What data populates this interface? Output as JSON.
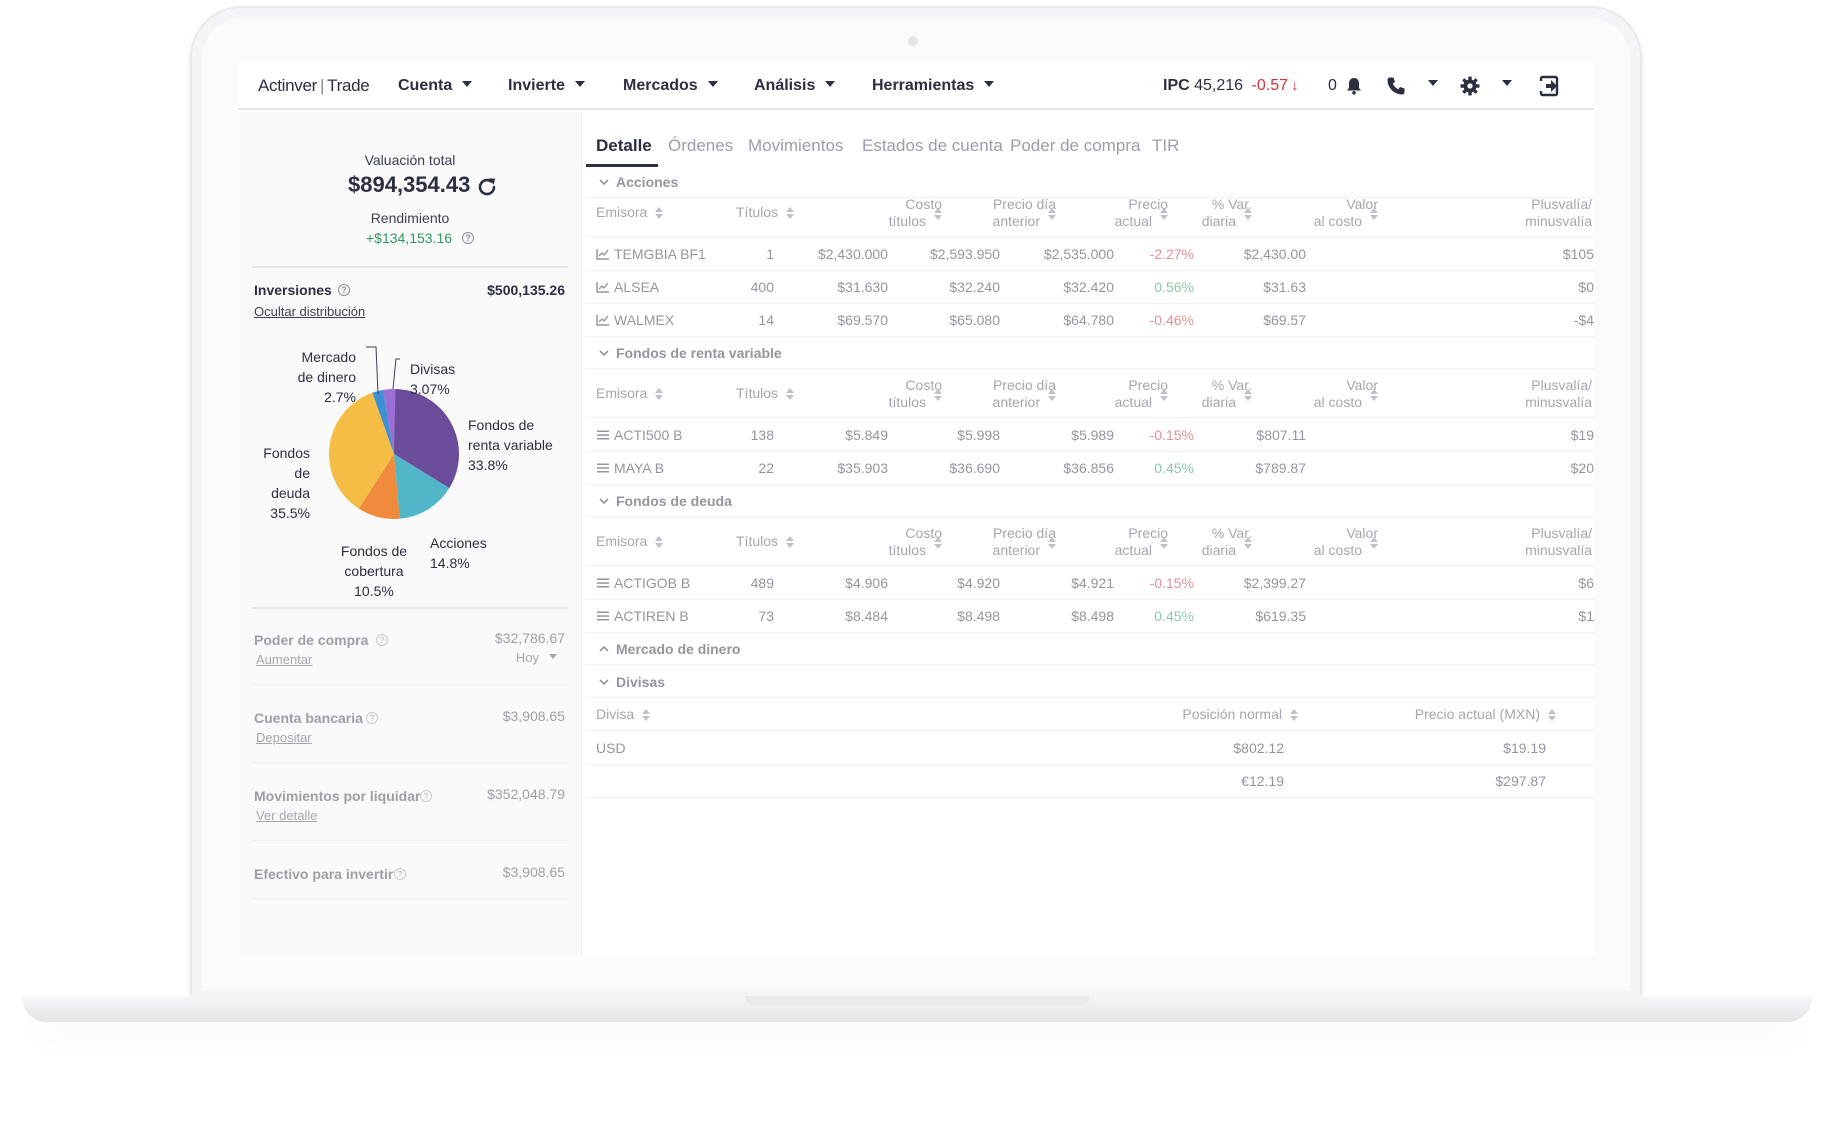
{
  "nav": {
    "brand_name": "Actinver",
    "brand_product": "Trade",
    "items": [
      "Cuenta",
      "Invierte",
      "Mercados",
      "Análisis",
      "Herramientas"
    ],
    "ipc_label": "IPC",
    "ipc_value": "45,216",
    "ipc_change": "-0.57",
    "notifications": "0"
  },
  "summary": {
    "valuation_label": "Valuación total",
    "valuation": "$894,354.43",
    "return_label": "Rendimiento",
    "return_value": "+$134,153.16",
    "investments_label": "Inversiones",
    "investments_value": "$500,135.26",
    "hide_distribution": "Ocultar distribución"
  },
  "pie": {
    "slices": [
      {
        "name": "Fondos de renta variable",
        "pct": 33.8,
        "color": "#6b4c9a"
      },
      {
        "name": "Acciones",
        "pct": 14.8,
        "color": "#52b6c9"
      },
      {
        "name": "Fondos de cobertura",
        "pct": 10.5,
        "color": "#f08a3c"
      },
      {
        "name": "Fondos de deuda",
        "pct": 35.5,
        "color": "#f4bd45"
      },
      {
        "name": "Mercado de dinero",
        "pct": 2.7,
        "color": "#3f8fd6"
      },
      {
        "name": "Divisas",
        "pct": 3.07,
        "color": "#9b6fd6"
      }
    ],
    "labels": {
      "mercado_l1": "Mercado",
      "mercado_l2": "de dinero",
      "mercado_pct": "2.7%",
      "divisas_l1": "Divisas",
      "divisas_pct": "3.07%",
      "rv_l1": "Fondos de",
      "rv_l2": "renta variable",
      "rv_pct": "33.8%",
      "deuda_l1": "Fondos de",
      "deuda_l2": "deuda",
      "deuda_pct": "35.5%",
      "acciones_l1": "Acciones",
      "acciones_pct": "14.8%",
      "cob_l1": "Fondos de",
      "cob_l2": "cobertura",
      "cob_pct": "10.5%"
    }
  },
  "left_rows": [
    {
      "label": "Poder de compra",
      "amount": "$32,786.67",
      "link": "Aumentar",
      "sub": "Hoy"
    },
    {
      "label": "Cuenta bancaria",
      "amount": "$3,908.65",
      "link": "Depositar"
    },
    {
      "label": "Movimientos por liquidar",
      "amount": "$352,048.79",
      "link": "Ver detalle"
    },
    {
      "label": "Efectivo para invertir",
      "amount": "$3,908.65"
    }
  ],
  "tabs": [
    "Detalle",
    "Órdenes",
    "Movimientos",
    "Estados de cuenta",
    "Poder de compra",
    "TIR"
  ],
  "columns": {
    "emisora": "Emisora",
    "titulos": "Títulos",
    "costo_1": "Costo",
    "costo_2": "títulos",
    "precio_ant_1": "Precio día",
    "precio_ant_2": "anterior",
    "precio_act_1": "Precio",
    "precio_act_2": "actual",
    "var_1": "% Var.",
    "var_2": "diaria",
    "valor_1": "Valor",
    "valor_2": "al costo",
    "plus_1": "Plusvalía/",
    "plus_2": "minusvalía"
  },
  "sections": {
    "acciones": "Acciones",
    "renta_variable": "Fondos de renta variable",
    "deuda": "Fondos de deuda",
    "mercado": "Mercado de dinero",
    "divisas": "Divisas"
  },
  "acciones": [
    {
      "emisora": "TEMGBIA BF1",
      "titulos": "1",
      "costo": "$2,430.000",
      "ant": "$2,593.950",
      "act": "$2,535.000",
      "var": "-2.27%",
      "valor": "$2,430.00",
      "plus": "$105"
    },
    {
      "emisora": "ALSEA",
      "titulos": "400",
      "costo": "$31.630",
      "ant": "$32.240",
      "act": "$32.420",
      "var": "0.56%",
      "valor": "$31.63",
      "plus": "$0"
    },
    {
      "emisora": "WALMEX",
      "titulos": "14",
      "costo": "$69.570",
      "ant": "$65.080",
      "act": "$64.780",
      "var": "-0.46%",
      "valor": "$69.57",
      "plus": "-$4"
    }
  ],
  "renta_variable": [
    {
      "emisora": "ACTI500 B",
      "titulos": "138",
      "costo": "$5.849",
      "ant": "$5.998",
      "act": "$5.989",
      "var": "-0.15%",
      "valor": "$807.11",
      "plus": "$19"
    },
    {
      "emisora": "MAYA B",
      "titulos": "22",
      "costo": "$35.903",
      "ant": "$36.690",
      "act": "$36.856",
      "var": "0.45%",
      "valor": "$789.87",
      "plus": "$20"
    }
  ],
  "deuda": [
    {
      "emisora": "ACTIGOB B",
      "titulos": "489",
      "costo": "$4.906",
      "ant": "$4.920",
      "act": "$4.921",
      "var": "-0.15%",
      "valor": "$2,399.27",
      "plus": "$6"
    },
    {
      "emisora": "ACTIREN B",
      "titulos": "73",
      "costo": "$8.484",
      "ant": "$8.498",
      "act": "$8.498",
      "var": "0.45%",
      "valor": "$619.35",
      "plus": "$1"
    }
  ],
  "divisas": {
    "col_divisa": "Divisa",
    "col_posicion": "Posición normal",
    "col_precio": "Precio actual (MXN)",
    "rows": [
      {
        "divisa": "USD",
        "posicion": "$802.12",
        "precio": "$19.19"
      },
      {
        "divisa": "",
        "posicion": "€12.19",
        "precio": "$297.87"
      }
    ]
  }
}
